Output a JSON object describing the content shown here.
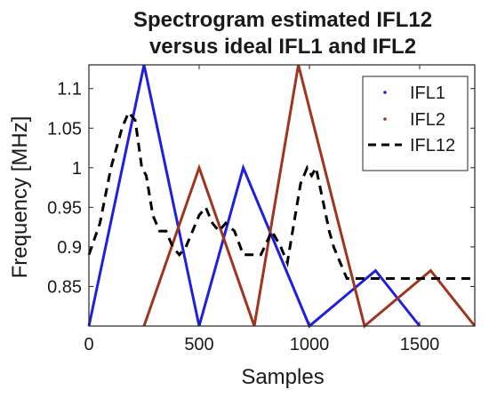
{
  "chart_data": {
    "type": "line",
    "title_lines": [
      "Spectrogram estimated IFL12",
      "versus ideal IFL1 and IFL2"
    ],
    "xlabel": "Samples",
    "ylabel": "Frequency [MHz]",
    "xlim": [
      0,
      1750
    ],
    "ylim": [
      0.8,
      1.13
    ],
    "xticks": [
      0,
      500,
      1000,
      1500
    ],
    "yticks": [
      0.85,
      0.9,
      0.95,
      1,
      1.05,
      1.1
    ],
    "ytick_labels": [
      "0.85",
      "0.9",
      "0.95",
      "1",
      "1.05",
      "1.1"
    ],
    "grid": false,
    "legend_position": "top-right",
    "series": [
      {
        "name": "IFL1",
        "color": "#1f1fe0",
        "style": "solid",
        "x": [
          0,
          250,
          500,
          700,
          1000,
          1300,
          1500
        ],
        "y": [
          0.8,
          1.13,
          0.8,
          1.0,
          0.8,
          0.87,
          0.8
        ]
      },
      {
        "name": "IFL2",
        "color": "#a0341c",
        "style": "solid",
        "x": [
          250,
          500,
          750,
          950,
          1250,
          1550,
          1750
        ],
        "y": [
          0.8,
          1.0,
          0.8,
          1.13,
          0.8,
          0.87,
          0.8
        ]
      },
      {
        "name": "IFL12",
        "color": "#000000",
        "style": "dashed",
        "x": [
          0,
          50,
          100,
          150,
          180,
          210,
          240,
          260,
          290,
          320,
          350,
          380,
          410,
          440,
          470,
          500,
          530,
          560,
          590,
          620,
          660,
          700,
          740,
          780,
          830,
          870,
          900,
          930,
          960,
          990,
          1010,
          1030,
          1060,
          1090,
          1110,
          1140,
          1170,
          1200,
          1300,
          1500,
          1750
        ],
        "y": [
          0.89,
          0.93,
          1.0,
          1.05,
          1.07,
          1.06,
          1.0,
          0.99,
          0.94,
          0.92,
          0.92,
          0.9,
          0.89,
          0.9,
          0.92,
          0.94,
          0.95,
          0.93,
          0.92,
          0.93,
          0.92,
          0.89,
          0.89,
          0.89,
          0.92,
          0.9,
          0.88,
          0.93,
          0.98,
          1.0,
          0.99,
          1.0,
          0.96,
          0.92,
          0.9,
          0.88,
          0.86,
          0.86,
          0.86,
          0.86,
          0.86
        ]
      }
    ]
  }
}
